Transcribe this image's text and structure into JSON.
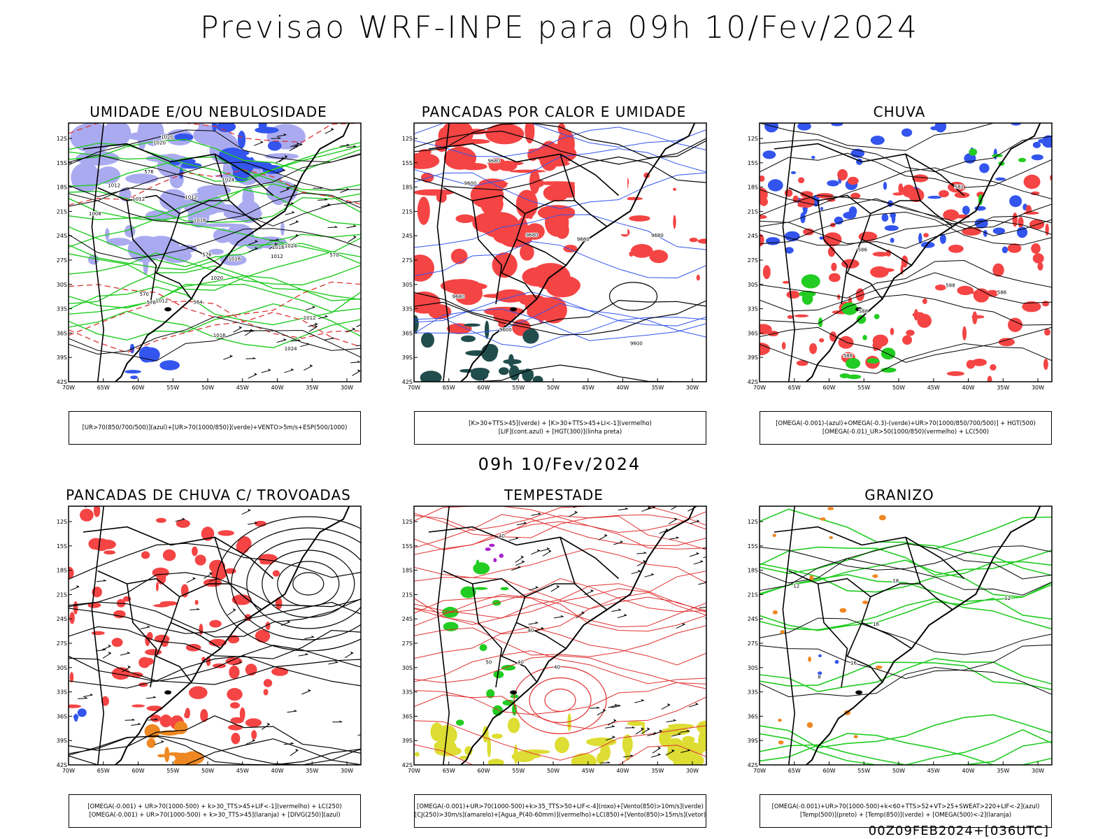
{
  "title": "Previsao WRF-INPE  para 09h 10/Fev/2024",
  "middle_title": "09h 10/Fev/2024",
  "footer": "00Z09FEB2024+[036UTC]",
  "colors": {
    "red": "#f44444",
    "green": "#22cc22",
    "blue": "#3355ee",
    "lavender": "#aaaaf0",
    "orange": "#ee8822",
    "yellow": "#dddd33",
    "teal": "#224d4d",
    "purple": "#aa22cc"
  },
  "axes": {
    "lat_labels": [
      "12S",
      "15S",
      "18S",
      "21S",
      "24S",
      "27S",
      "30S",
      "33S",
      "36S",
      "39S",
      "42S"
    ],
    "lon_labels": [
      "70W",
      "65W",
      "60W",
      "55W",
      "50W",
      "45W",
      "40W",
      "35W",
      "30W"
    ]
  },
  "panels": [
    {
      "id": "umidade",
      "title": "UMIDADE E/OU NEBULOSIDADE",
      "legend": [
        "[UR>70(850/700/500)](azul)+[UR>70(1000/850)](verde)+VENTO>5m/s+ESP(500/1000)"
      ],
      "labels": [
        "1012",
        "1012",
        "1016",
        "1020",
        "1012",
        "1024",
        "1008",
        "1016",
        "1012",
        "1012",
        "1020",
        "1016",
        "1024",
        "1024",
        "1020",
        "1016",
        "1012",
        "576",
        "570",
        "564",
        "570",
        "576",
        "576"
      ]
    },
    {
      "id": "pancadas-calor",
      "title": "PANCADAS POR CALOR E UMIDADE",
      "legend": [
        "[K>30+TTS>45](verde) + [K>30+TTS>45+LI<-1](vermelho)",
        "[LIF](cont.azul) + [HGT(300)](linha preta)"
      ],
      "labels": [
        "9680",
        "9680",
        "9680",
        "9600",
        "9680",
        "9600",
        "9680",
        "9600"
      ]
    },
    {
      "id": "chuva",
      "title": "CHUVA",
      "legend": [
        "[OMEGA(-0.001)-(azul)+OMEGA(-0.3)-(verde)+UR>70(1000/850/700/500)] + HGT(500)",
        "[OMEGA(-0.01)_UR>50(1000/850)(vermelho) + LC(500)"
      ],
      "labels": [
        "588",
        "588",
        "586",
        "588",
        "586",
        "582"
      ]
    },
    {
      "id": "trovoadas",
      "title": "PANCADAS DE CHUVA C/ TROVOADAS",
      "legend": [
        "[OMEGA(-0.001) + UR>70(1000-500) + k>30_TTS>45+LIF<-1](vermelho) + LC(250)",
        "[OMEGA(-0.001) + UR>70(1000-500) + k>30_TTS>45](laranja) + [DIVG(250)](azul)"
      ],
      "labels": []
    },
    {
      "id": "tempestade",
      "title": "TEMPESTADE",
      "legend": [
        "[OMEGA(-0.001)+UR>70(1000-500)+k>35_TTS>50+LIF<-4](roxo)+[Vento(850)>10m/s](verde)",
        "[CJ(250)>30m/s](amarelo)+[Agua_P(40-60mm)](vermelho)+LC(850)+[Vento(850)>15m/s](vetor)"
      ],
      "labels": [
        "40",
        "40",
        "50",
        "40",
        "40"
      ]
    },
    {
      "id": "granizo",
      "title": "GRANIZO",
      "legend": [
        "[OMEGA(-0.001)+UR>70(1000-500)+k<60+TTS>52+VT>25+SWEAT>220+LIF<-2](azul)",
        "[Temp(500)](preto) + [Temp(850)](verde) + [OMEGA(500)<-2](laranja)"
      ],
      "labels": [
        "16",
        "12",
        "8",
        "12",
        "16",
        "18"
      ]
    }
  ]
}
